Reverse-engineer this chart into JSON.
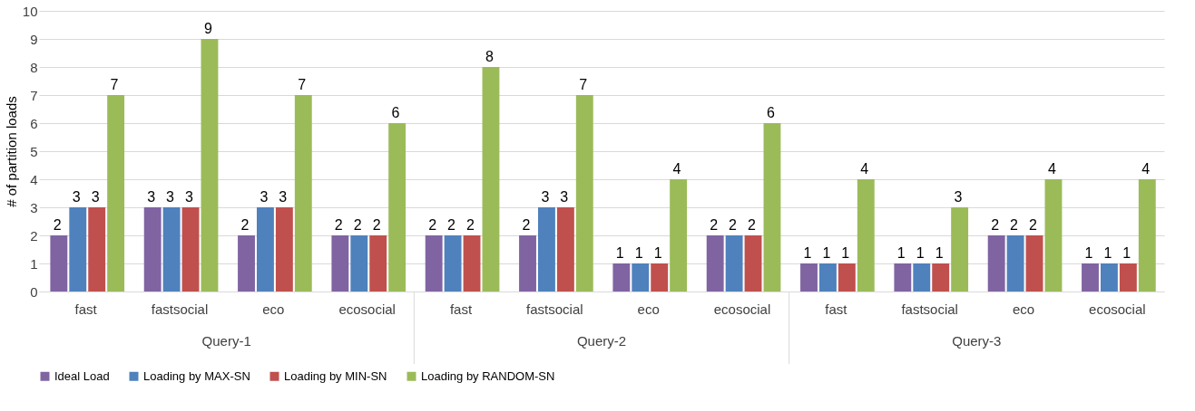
{
  "chart_data": {
    "type": "bar",
    "ylabel": "# of partition loads",
    "categories": [
      "fast",
      "fastsocial",
      "eco",
      "ecosocial",
      "fast",
      "fastsocial",
      "eco",
      "ecosocial",
      "fast",
      "fastsocial",
      "eco",
      "ecosocial"
    ],
    "annotations": [
      "Query-1",
      "Query-2",
      "Query-3"
    ],
    "series": [
      {
        "name": "Ideal Load",
        "color": "#8064a2",
        "values": [
          2,
          3,
          2,
          2,
          2,
          2,
          1,
          2,
          1,
          1,
          2,
          1
        ]
      },
      {
        "name": "Loading by MAX-SN",
        "color": "#4f81bd",
        "values": [
          3,
          3,
          3,
          2,
          2,
          3,
          1,
          2,
          1,
          1,
          2,
          1
        ]
      },
      {
        "name": "Loading by MIN-SN",
        "color": "#c0504d",
        "values": [
          3,
          3,
          3,
          2,
          2,
          3,
          1,
          2,
          1,
          1,
          2,
          1
        ]
      },
      {
        "name": "Loading by RANDOM-SN",
        "color": "#9bbb59",
        "values": [
          7,
          9,
          7,
          6,
          8,
          7,
          4,
          6,
          4,
          3,
          4,
          4
        ]
      }
    ],
    "ylim": [
      0,
      10
    ],
    "yticks": [
      0,
      1,
      2,
      3,
      4,
      5,
      6,
      7,
      8,
      9,
      10
    ],
    "grid": "y",
    "legend": "bottom",
    "data_labels": true
  }
}
